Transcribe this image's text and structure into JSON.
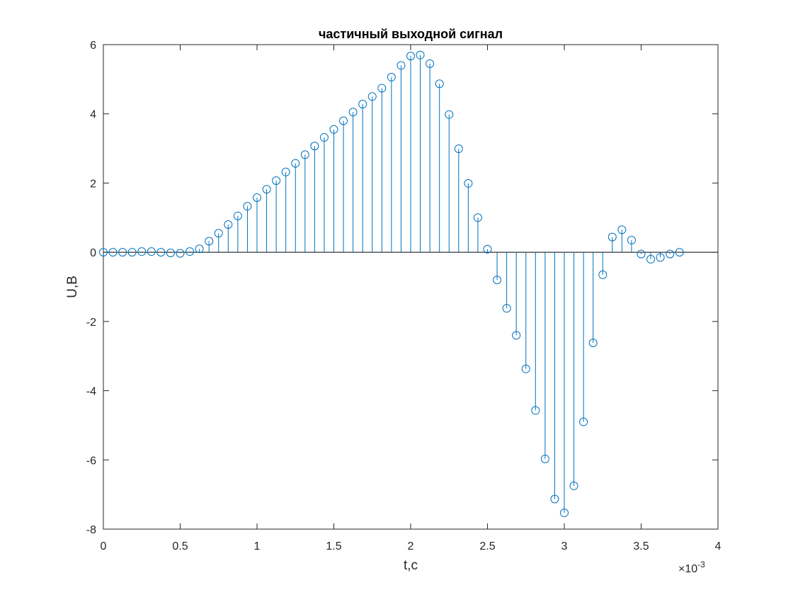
{
  "chart_data": {
    "type": "stem",
    "title": "частичный выходной сигнал",
    "xlabel": "t,c",
    "ylabel": "U,B",
    "x_exponent_label": "×10",
    "x_exponent_power": "-3",
    "xlim": [
      0,
      4
    ],
    "ylim": [
      -8,
      6
    ],
    "xticks": [
      0,
      0.5,
      1,
      1.5,
      2,
      2.5,
      3,
      3.5,
      4
    ],
    "xtick_labels": [
      "0",
      "0.5",
      "1",
      "1.5",
      "2",
      "2.5",
      "3",
      "3.5",
      "4"
    ],
    "yticks": [
      -8,
      -6,
      -4,
      -2,
      0,
      2,
      4,
      6
    ],
    "ytick_labels": [
      "-8",
      "-6",
      "-4",
      "-2",
      "0",
      "2",
      "4",
      "6"
    ],
    "x_scale_note": "x values in units of 10^-3 s",
    "series_color": "#0072BD",
    "grid": false,
    "x": [
      0,
      0.0625,
      0.125,
      0.1875,
      0.25,
      0.3125,
      0.375,
      0.4375,
      0.5,
      0.5625,
      0.625,
      0.6875,
      0.75,
      0.8125,
      0.875,
      0.9375,
      1.0,
      1.0625,
      1.125,
      1.1875,
      1.25,
      1.3125,
      1.375,
      1.4375,
      1.5,
      1.5625,
      1.625,
      1.6875,
      1.75,
      1.8125,
      1.875,
      1.9375,
      2.0,
      2.0625,
      2.125,
      2.1875,
      2.25,
      2.3125,
      2.375,
      2.4375,
      2.5,
      2.5625,
      2.625,
      2.6875,
      2.75,
      2.8125,
      2.875,
      2.9375,
      3.0,
      3.0625,
      3.125,
      3.1875,
      3.25,
      3.3125,
      3.375,
      3.4375,
      3.5,
      3.5625,
      3.625,
      3.6875,
      3.75
    ],
    "values": [
      0.0,
      0.0,
      0.0,
      0.0,
      0.02,
      0.02,
      0.0,
      -0.02,
      -0.03,
      0.02,
      0.1,
      0.32,
      0.55,
      0.8,
      1.05,
      1.33,
      1.58,
      1.82,
      2.07,
      2.32,
      2.57,
      2.82,
      3.07,
      3.32,
      3.55,
      3.8,
      4.05,
      4.28,
      4.5,
      4.74,
      5.06,
      5.4,
      5.67,
      5.7,
      5.45,
      4.87,
      3.98,
      2.99,
      1.99,
      1.0,
      0.09,
      -0.8,
      -1.62,
      -2.4,
      -3.37,
      -4.57,
      -5.97,
      -7.13,
      -7.53,
      -6.75,
      -4.9,
      -2.62,
      -0.65,
      0.44,
      0.65,
      0.35,
      -0.05,
      -0.2,
      -0.15,
      -0.05,
      0.0
    ]
  }
}
